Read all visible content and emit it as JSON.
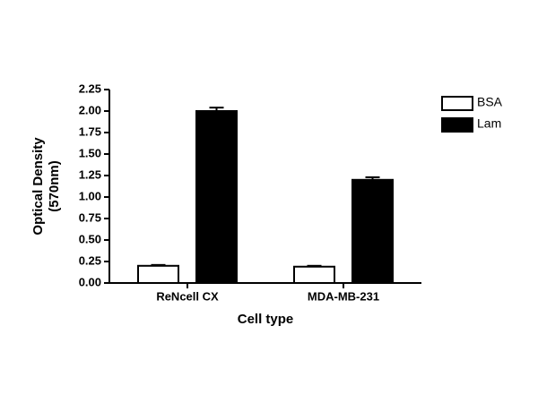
{
  "chart_data": {
    "type": "bar",
    "ylabel": [
      "Optical Density",
      "(570nm)"
    ],
    "xlabel": "Cell type",
    "categories": [
      "ReNcell CX",
      "MDA-MB-231"
    ],
    "series": [
      {
        "name": "BSA",
        "color": "#ffffff",
        "values": [
          0.2,
          0.19
        ],
        "errors": [
          0.01,
          0.01
        ]
      },
      {
        "name": "Lam",
        "color": "#000000",
        "values": [
          2.0,
          1.2
        ],
        "errors": [
          0.04,
          0.03
        ]
      }
    ],
    "ylim": [
      0,
      2.25
    ],
    "yticks": [
      {
        "value": 0,
        "label": "0.00"
      },
      0.25,
      {
        "value": 0.5,
        "label": "0.50"
      },
      0.75,
      {
        "value": 1,
        "label": "1.00"
      },
      1.25,
      {
        "value": 1.5,
        "label": "1.50"
      },
      1.75,
      {
        "value": 2,
        "label": "2.00"
      },
      2.25
    ],
    "legend": "right"
  }
}
